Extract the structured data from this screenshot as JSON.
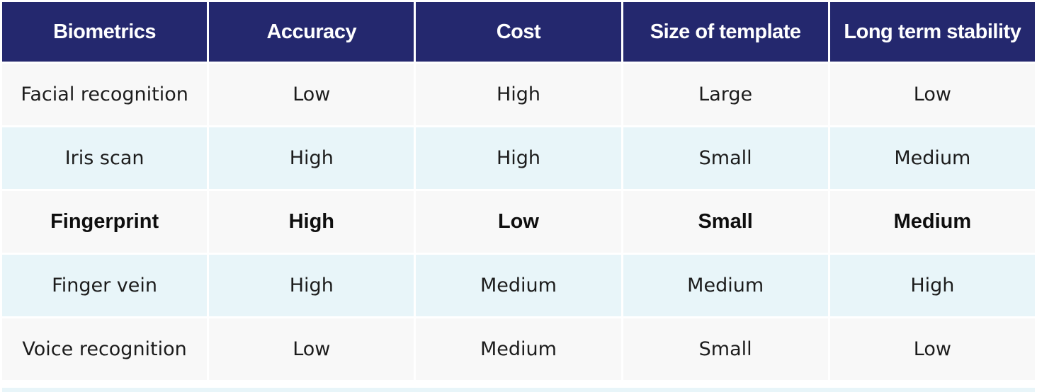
{
  "table": {
    "headers": [
      "Biometrics",
      "Accuracy",
      "Cost",
      "Size of template",
      "Long term stability"
    ],
    "rows": [
      [
        "Facial recognition",
        "Low",
        "High",
        "Large",
        "Low"
      ],
      [
        "Iris scan",
        "High",
        "High",
        "Small",
        "Medium"
      ],
      [
        "Fingerprint",
        "High",
        "Low",
        "Small",
        "Medium"
      ],
      [
        "Finger vein",
        "High",
        "Medium",
        "Medium",
        "High"
      ],
      [
        "Voice recognition",
        "Low",
        "Medium",
        "Small",
        "Low"
      ]
    ],
    "highlighted_row": "Fingerprint",
    "colors": {
      "header_background": "#24286e",
      "header_text": "#ffffff",
      "row_light": "#f8f8f8",
      "row_tint": "#e8f5f9"
    }
  }
}
